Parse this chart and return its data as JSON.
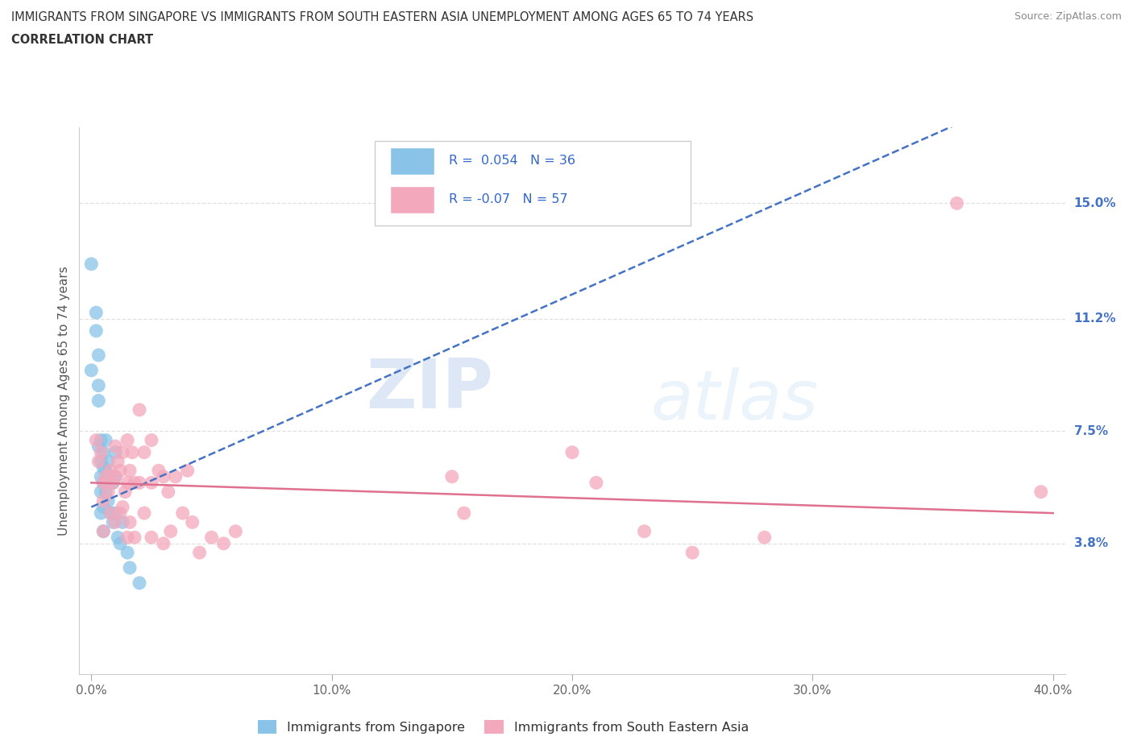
{
  "title_line1": "IMMIGRANTS FROM SINGAPORE VS IMMIGRANTS FROM SOUTH EASTERN ASIA UNEMPLOYMENT AMONG AGES 65 TO 74 YEARS",
  "title_line2": "CORRELATION CHART",
  "source_text": "Source: ZipAtlas.com",
  "ylabel": "Unemployment Among Ages 65 to 74 years",
  "xlim": [
    -0.005,
    0.405
  ],
  "ylim": [
    -0.005,
    0.175
  ],
  "xticks": [
    0.0,
    0.1,
    0.2,
    0.3,
    0.4
  ],
  "xticklabels": [
    "0.0%",
    "10.0%",
    "20.0%",
    "30.0%",
    "40.0%"
  ],
  "ytick_values": [
    0.038,
    0.075,
    0.112,
    0.15
  ],
  "ytick_labels": [
    "3.8%",
    "7.5%",
    "11.2%",
    "15.0%"
  ],
  "color_singapore": "#89c4e8",
  "color_sea": "#f4a8bc",
  "trendline_singapore_color": "#4472c4",
  "trendline_sea_color": "#e07090",
  "R_singapore": 0.054,
  "N_singapore": 36,
  "R_sea": -0.07,
  "N_sea": 57,
  "legend_label_singapore": "Immigrants from Singapore",
  "legend_label_sea": "Immigrants from South Eastern Asia",
  "watermark_zip": "ZIP",
  "watermark_atlas": "atlas",
  "singapore_scatter_x": [
    0.0,
    0.0,
    0.002,
    0.002,
    0.003,
    0.003,
    0.003,
    0.003,
    0.004,
    0.004,
    0.004,
    0.004,
    0.004,
    0.005,
    0.005,
    0.005,
    0.005,
    0.005,
    0.006,
    0.006,
    0.006,
    0.007,
    0.007,
    0.008,
    0.008,
    0.009,
    0.009,
    0.01,
    0.01,
    0.01,
    0.011,
    0.012,
    0.013,
    0.015,
    0.016,
    0.02
  ],
  "singapore_scatter_y": [
    0.13,
    0.095,
    0.114,
    0.108,
    0.1,
    0.09,
    0.085,
    0.07,
    0.072,
    0.065,
    0.06,
    0.055,
    0.048,
    0.068,
    0.063,
    0.058,
    0.05,
    0.042,
    0.072,
    0.062,
    0.055,
    0.065,
    0.052,
    0.06,
    0.048,
    0.058,
    0.045,
    0.068,
    0.06,
    0.048,
    0.04,
    0.038,
    0.045,
    0.035,
    0.03,
    0.025
  ],
  "sea_scatter_x": [
    0.002,
    0.003,
    0.004,
    0.005,
    0.005,
    0.005,
    0.006,
    0.007,
    0.008,
    0.008,
    0.009,
    0.01,
    0.01,
    0.01,
    0.011,
    0.012,
    0.012,
    0.013,
    0.013,
    0.014,
    0.015,
    0.015,
    0.015,
    0.016,
    0.016,
    0.017,
    0.018,
    0.018,
    0.02,
    0.02,
    0.022,
    0.022,
    0.025,
    0.025,
    0.025,
    0.028,
    0.03,
    0.03,
    0.032,
    0.033,
    0.035,
    0.038,
    0.04,
    0.042,
    0.045,
    0.05,
    0.055,
    0.06,
    0.15,
    0.155,
    0.2,
    0.21,
    0.23,
    0.25,
    0.28,
    0.36,
    0.395
  ],
  "sea_scatter_y": [
    0.072,
    0.065,
    0.068,
    0.058,
    0.052,
    0.042,
    0.06,
    0.055,
    0.062,
    0.048,
    0.058,
    0.07,
    0.06,
    0.045,
    0.065,
    0.062,
    0.048,
    0.068,
    0.05,
    0.055,
    0.072,
    0.058,
    0.04,
    0.062,
    0.045,
    0.068,
    0.058,
    0.04,
    0.082,
    0.058,
    0.068,
    0.048,
    0.072,
    0.058,
    0.04,
    0.062,
    0.06,
    0.038,
    0.055,
    0.042,
    0.06,
    0.048,
    0.062,
    0.045,
    0.035,
    0.04,
    0.038,
    0.042,
    0.06,
    0.048,
    0.068,
    0.058,
    0.042,
    0.035,
    0.04,
    0.15,
    0.055
  ],
  "sg_trendline": [
    0.0,
    0.4,
    0.05,
    0.19
  ],
  "sea_trendline": [
    0.0,
    0.4,
    0.058,
    0.048
  ]
}
